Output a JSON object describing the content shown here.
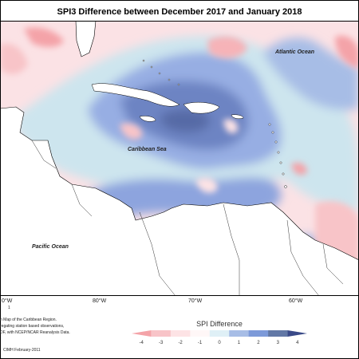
{
  "title": "SPI3 Difference between December 2017 and January 2018",
  "labels": {
    "atlantic": "Atlantic Ocean",
    "caribbean": "Caribbean Sea",
    "pacific": "Pacific Ocean"
  },
  "lon_ticks": [
    "0°W",
    "80°W",
    "70°W",
    "60°W"
  ],
  "footnote": {
    "marker": "1",
    "line1": "n Map of the Caribbean Region.",
    "line2": "regating station based observations,",
    "line3": "DF, with NCEP/NCAR Reanalysis Data.",
    "credit": "CIMH February-2011"
  },
  "legend": {
    "title": "SPI Difference",
    "ticks": [
      "-4",
      "-3",
      "-2",
      "-1",
      "0",
      "1",
      "2",
      "3",
      "4"
    ],
    "colors": [
      "#f4a3a8",
      "#f8c4c8",
      "#fde3e5",
      "#fff7f7",
      "#dff0f6",
      "#a7bde6",
      "#7d9ad9",
      "#6278a6",
      "#3a4a88"
    ]
  }
}
